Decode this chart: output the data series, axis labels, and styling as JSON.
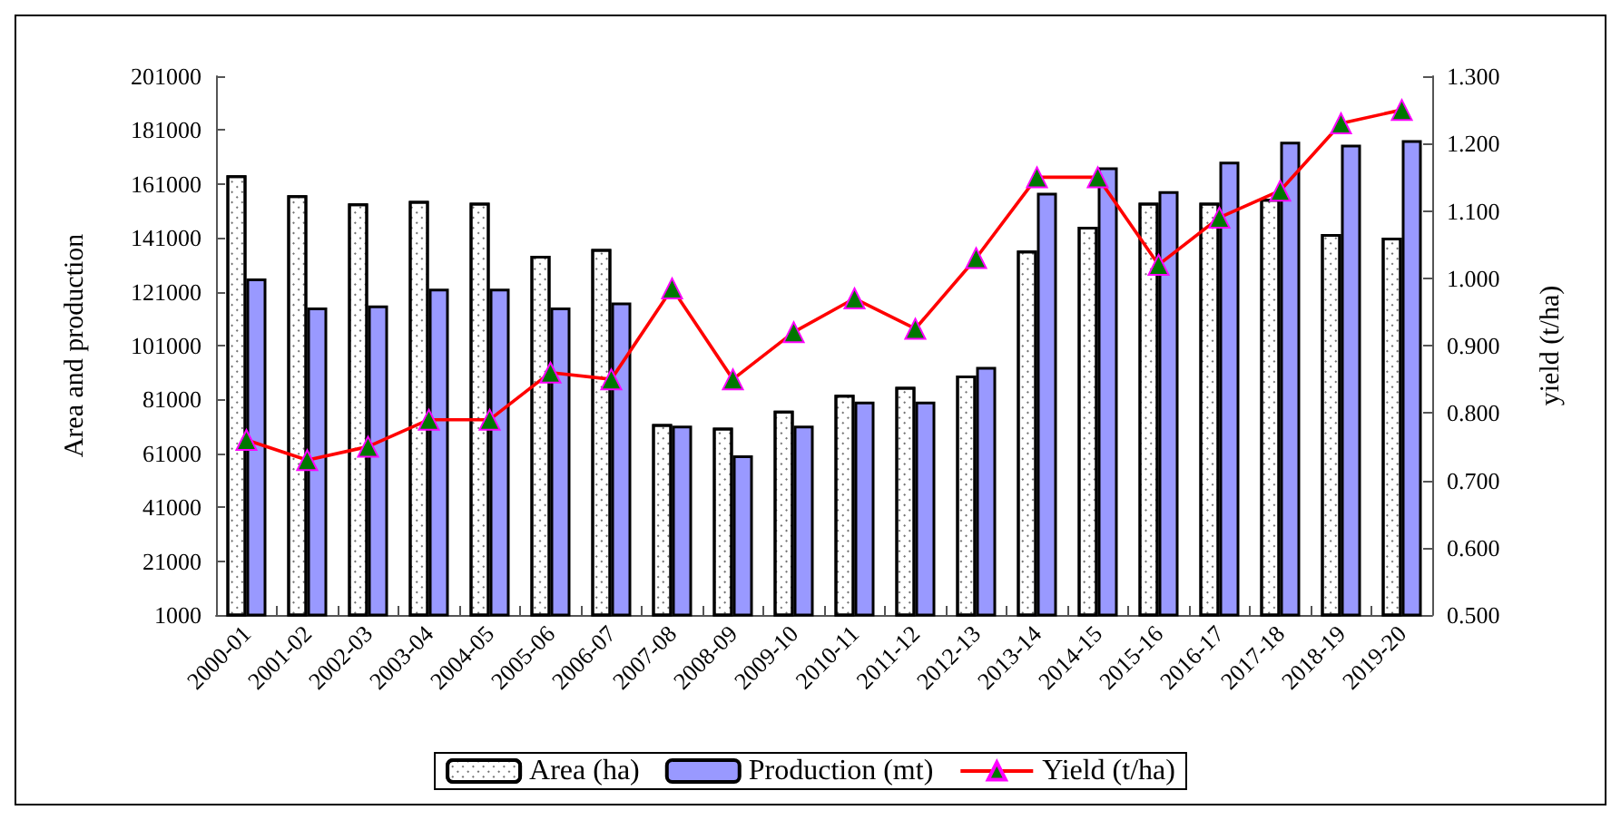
{
  "chart_data": {
    "type": "bar",
    "categories": [
      "2000-01",
      "2001-02",
      "2002-03",
      "2003-04",
      "2004-05",
      "2005-06",
      "2006-07",
      "2007-08",
      "2008-09",
      "2009-10",
      "2010-11",
      "2011-12",
      "2012-13",
      "2013-14",
      "2014-15",
      "2015-16",
      "2016-17",
      "2017-18",
      "2018-19",
      "2019-20"
    ],
    "series": [
      {
        "name": "Area (ha)",
        "color": "#ffffff",
        "values": [
          164200,
          156800,
          153800,
          154700,
          154000,
          134300,
          136900,
          71900,
          70500,
          76800,
          82700,
          85700,
          89900,
          136300,
          145100,
          154000,
          154000,
          155500,
          142400,
          141100
        ]
      },
      {
        "name": "Production (mt)",
        "color": "#9999ff",
        "values": [
          125900,
          115100,
          115900,
          122100,
          122100,
          115100,
          117000,
          71300,
          60300,
          71300,
          80200,
          80200,
          93100,
          157700,
          167200,
          158300,
          169300,
          176700,
          175600,
          177300
        ]
      },
      {
        "name": "Yield (t/ha)",
        "type": "line",
        "axis": "y2",
        "color": "#ff0000",
        "marker": "triangle",
        "values": [
          0.76,
          0.73,
          0.75,
          0.79,
          0.79,
          0.86,
          0.85,
          0.985,
          0.85,
          0.92,
          0.97,
          0.925,
          1.03,
          1.15,
          1.15,
          1.02,
          1.09,
          1.13,
          1.23,
          1.25
        ]
      }
    ],
    "ylabel": "Area and production",
    "y2label": "yield (t/ha)",
    "ylim": [
      1000,
      201000
    ],
    "yticks": [
      1000,
      21000,
      41000,
      61000,
      81000,
      101000,
      121000,
      141000,
      161000,
      181000,
      201000
    ],
    "y2lim": [
      0.5,
      1.3
    ],
    "y2ticks": [
      {
        "value": 0.5,
        "label": "0.500"
      },
      {
        "value": 0.6,
        "label": "0.600"
      },
      {
        "value": 0.7,
        "label": "0.700"
      },
      {
        "value": 0.8,
        "label": "0.800"
      },
      {
        "value": 0.9,
        "label": "0.900"
      },
      {
        "value": 1.0,
        "label": "1.000"
      },
      {
        "value": 1.1,
        "label": "1.100"
      },
      {
        "value": 1.2,
        "label": "1.200"
      },
      {
        "value": 1.3,
        "label": "1.300"
      }
    ],
    "legend": "bottom",
    "grid": false
  }
}
